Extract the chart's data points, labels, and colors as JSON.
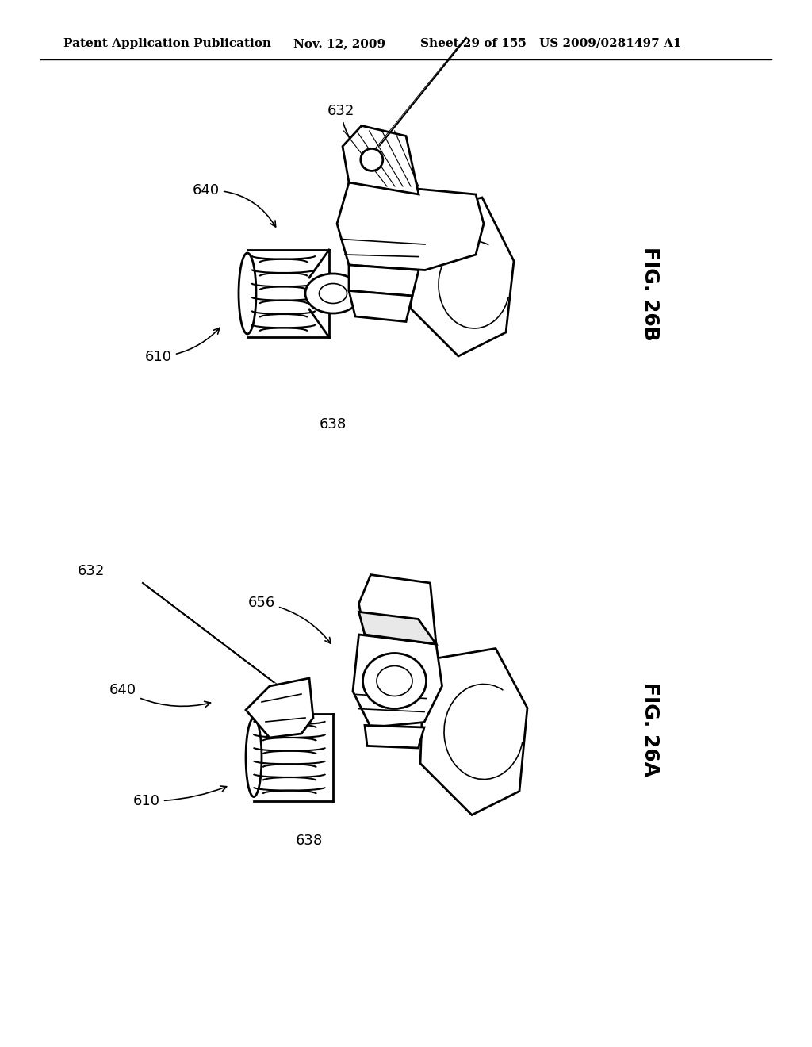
{
  "bg_color": "#ffffff",
  "line_color": "#000000",
  "header_text": "Patent Application Publication",
  "header_date": "Nov. 12, 2009",
  "header_sheet": "Sheet 29 of 155",
  "header_patent": "US 2009/0281497 A1",
  "fig_top_label": "FIG. 26B",
  "fig_bot_label": "FIG. 26A",
  "header_font_size": 11,
  "label_font_size": 13,
  "fig_label_font_size": 18
}
